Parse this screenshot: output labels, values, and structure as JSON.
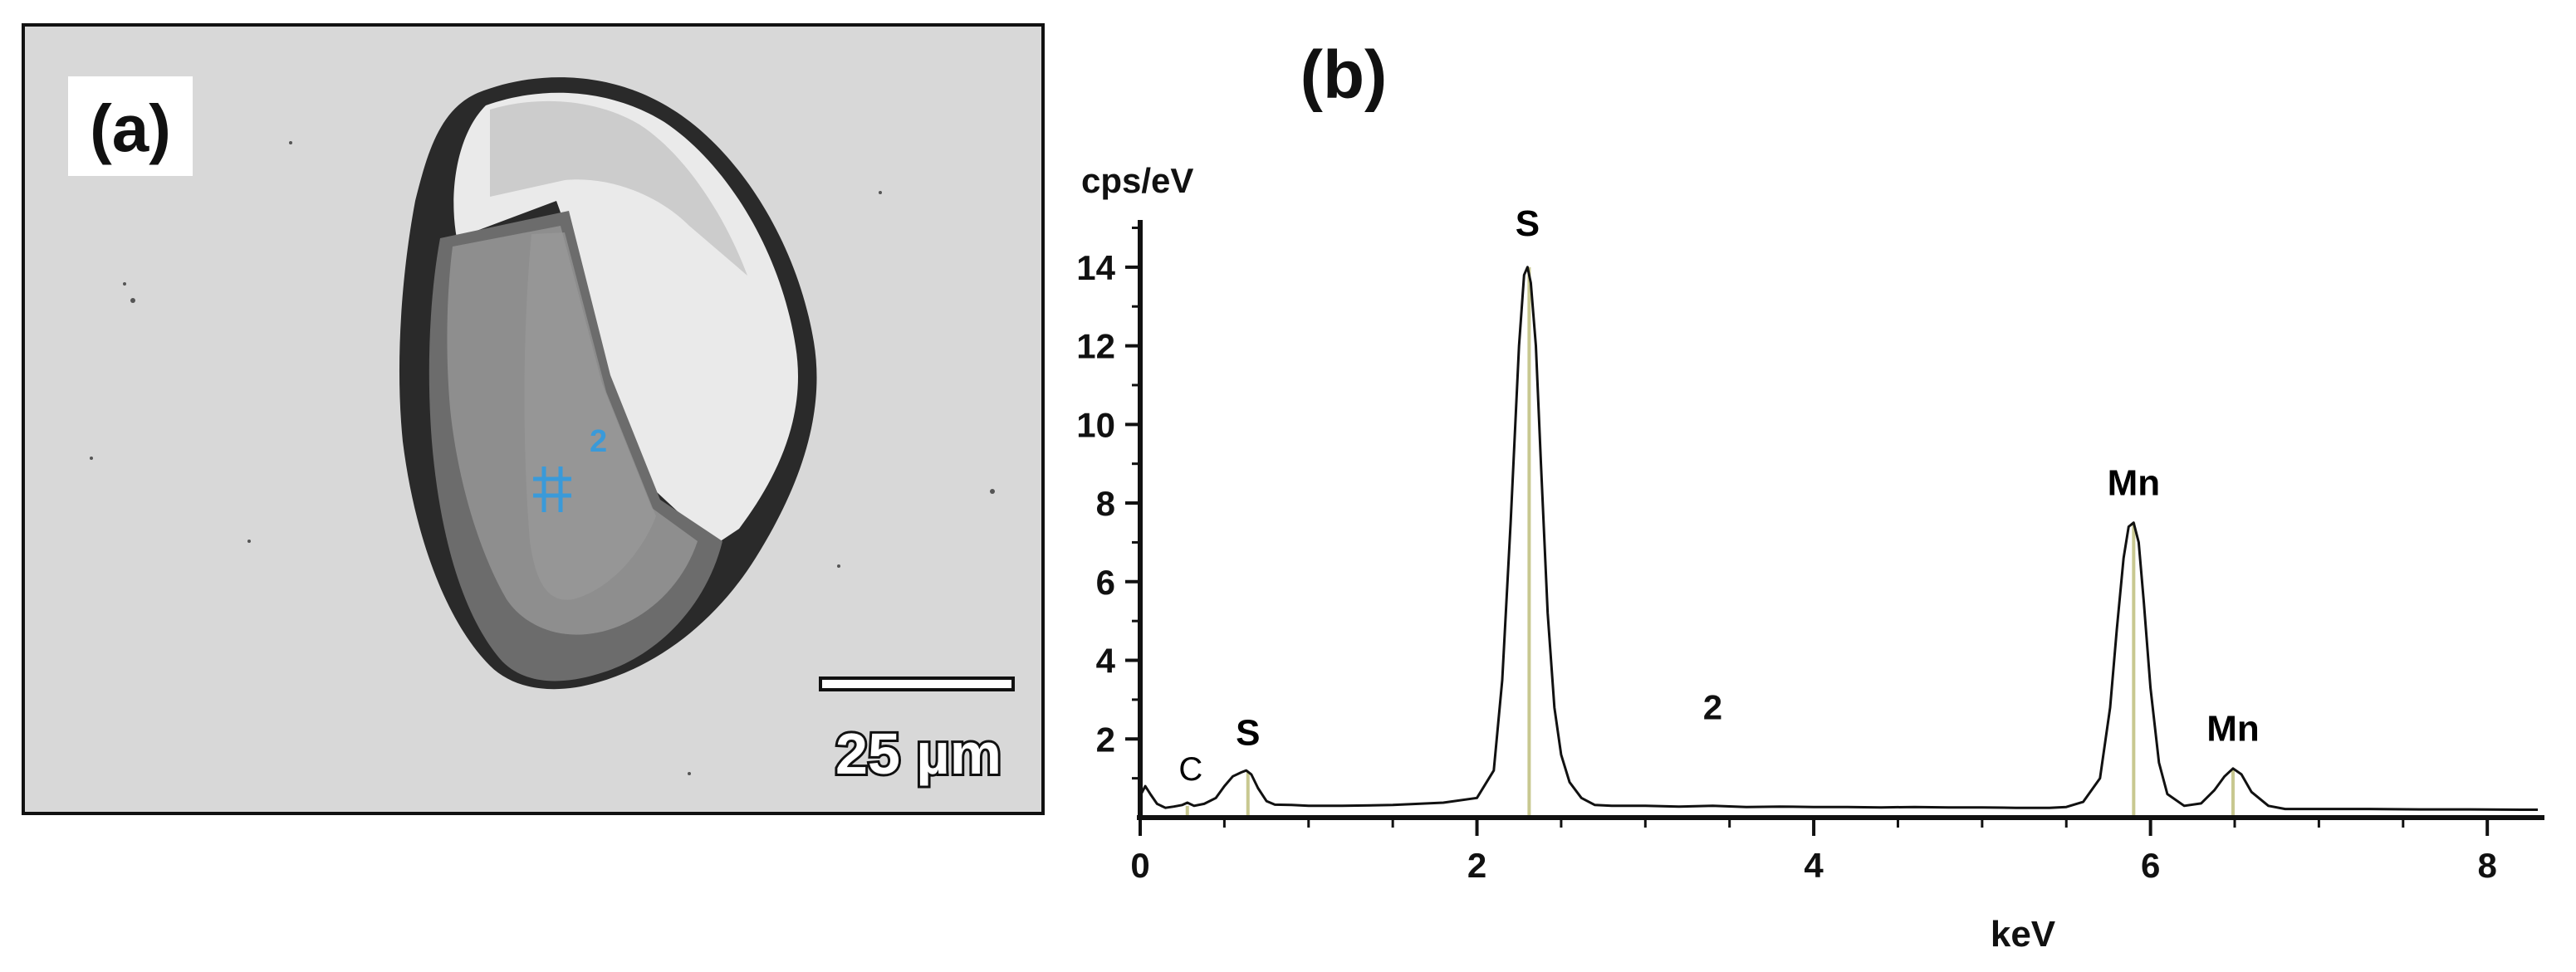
{
  "panel_a": {
    "label": "(a)",
    "point_label": "2",
    "scale_bar_label": "25 µm"
  },
  "chart_data": {
    "type": "line",
    "panel_label": "(b)",
    "title": "",
    "xlabel": "keV",
    "ylabel": "cps/eV",
    "xlim": [
      0,
      8.3
    ],
    "ylim": [
      0,
      15.2
    ],
    "xticks": [
      0,
      2,
      4,
      6,
      8
    ],
    "yticks": [
      2,
      4,
      6,
      8,
      10,
      12,
      14
    ],
    "grid": false,
    "spectrum_label": "2",
    "annotation_text_color": "#000000",
    "series": [
      {
        "color": "#111111",
        "x": [
          0.0,
          0.03,
          0.06,
          0.1,
          0.15,
          0.2,
          0.25,
          0.28,
          0.32,
          0.38,
          0.45,
          0.5,
          0.55,
          0.6,
          0.63,
          0.66,
          0.7,
          0.75,
          0.8,
          0.9,
          1.0,
          1.2,
          1.5,
          1.8,
          2.0,
          2.1,
          2.15,
          2.2,
          2.25,
          2.28,
          2.3,
          2.32,
          2.35,
          2.38,
          2.42,
          2.46,
          2.5,
          2.55,
          2.62,
          2.7,
          2.8,
          3.0,
          3.2,
          3.4,
          3.6,
          3.8,
          4.0,
          4.2,
          4.4,
          4.6,
          4.8,
          5.0,
          5.2,
          5.4,
          5.5,
          5.6,
          5.7,
          5.76,
          5.8,
          5.84,
          5.87,
          5.9,
          5.93,
          5.96,
          6.0,
          6.05,
          6.1,
          6.2,
          6.3,
          6.38,
          6.44,
          6.49,
          6.54,
          6.6,
          6.7,
          6.8,
          7.0,
          7.3,
          7.6,
          7.9,
          8.2,
          8.3
        ],
        "y": [
          0.55,
          0.8,
          0.6,
          0.35,
          0.25,
          0.28,
          0.32,
          0.38,
          0.3,
          0.35,
          0.5,
          0.8,
          1.05,
          1.15,
          1.2,
          1.1,
          0.75,
          0.42,
          0.33,
          0.32,
          0.3,
          0.3,
          0.32,
          0.38,
          0.5,
          1.2,
          3.5,
          7.5,
          12.0,
          13.8,
          14.0,
          13.6,
          12.0,
          9.0,
          5.2,
          2.8,
          1.6,
          0.9,
          0.5,
          0.32,
          0.3,
          0.3,
          0.28,
          0.3,
          0.27,
          0.28,
          0.27,
          0.27,
          0.26,
          0.27,
          0.26,
          0.26,
          0.25,
          0.25,
          0.27,
          0.4,
          1.0,
          2.8,
          4.8,
          6.6,
          7.4,
          7.5,
          7.0,
          5.5,
          3.3,
          1.4,
          0.6,
          0.3,
          0.36,
          0.7,
          1.05,
          1.25,
          1.1,
          0.65,
          0.3,
          0.22,
          0.22,
          0.22,
          0.21,
          0.21,
          0.2,
          0.2
        ]
      }
    ],
    "peak_lines": [
      {
        "x": 0.28,
        "y": 0.3
      },
      {
        "x": 0.64,
        "y": 1.15
      },
      {
        "x": 2.31,
        "y": 14.0
      },
      {
        "x": 5.9,
        "y": 7.5
      },
      {
        "x": 6.49,
        "y": 1.25
      }
    ],
    "peak_line_color": "#c8c890",
    "annotations": [
      {
        "text": "C",
        "x": 0.3,
        "y": 0.95
      },
      {
        "text": "S",
        "x": 0.64,
        "y": 1.85
      },
      {
        "text": "S",
        "x": 2.3,
        "y": 14.8
      },
      {
        "text": "Mn",
        "x": 5.9,
        "y": 8.2
      },
      {
        "text": "Mn",
        "x": 6.49,
        "y": 1.95
      }
    ]
  }
}
